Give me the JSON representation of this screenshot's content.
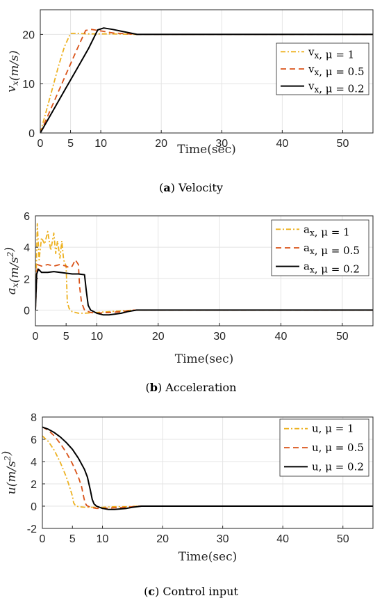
{
  "chart_data": [
    {
      "type": "line",
      "caption_letter": "a",
      "caption_text": "Velocity",
      "xlabel": "Time(sec)",
      "ylabel": "v_x(m/s)",
      "xlim": [
        0,
        55
      ],
      "ylim": [
        0,
        25
      ],
      "xticks": [
        0,
        5,
        10,
        20,
        30,
        40,
        50
      ],
      "yticks": [
        0,
        10,
        20
      ],
      "grid": true,
      "legend_position": "right",
      "series": [
        {
          "name": "v_x, μ = 1",
          "color": "#EDB120",
          "style": "dashdot",
          "x": [
            0,
            1,
            2,
            3,
            4,
            5,
            6,
            8,
            12,
            16,
            55
          ],
          "y": [
            0,
            4.5,
            9,
            13.5,
            17.5,
            20.2,
            20.2,
            20.1,
            20.1,
            20,
            20
          ]
        },
        {
          "name": "v_x, μ = 0.5",
          "color": "#D95319",
          "style": "dashed",
          "x": [
            0,
            2,
            4,
            6,
            7.5,
            8.5,
            10,
            12,
            16,
            55
          ],
          "y": [
            0,
            5.6,
            11.2,
            16.8,
            20.8,
            21,
            20.7,
            20.3,
            20,
            20
          ]
        },
        {
          "name": "v_x, μ = 0.2",
          "color": "#000000",
          "style": "solid",
          "x": [
            0,
            2,
            4,
            6,
            8,
            9.5,
            10.5,
            12,
            14,
            16,
            55
          ],
          "y": [
            0,
            4.3,
            8.6,
            12.9,
            17.2,
            20.9,
            21.3,
            21,
            20.5,
            20,
            20
          ]
        }
      ]
    },
    {
      "type": "line",
      "caption_letter": "b",
      "caption_text": "Acceleration",
      "xlabel": "Time(sec)",
      "ylabel": "a_x(m/s^2)",
      "xlim": [
        0,
        55
      ],
      "ylim": [
        -1,
        6
      ],
      "xticks": [
        0,
        10,
        20,
        30,
        40,
        50
      ],
      "extra_xticks": [
        5
      ],
      "yticks": [
        0,
        2,
        4,
        6
      ],
      "grid": true,
      "legend_position": "top-right",
      "series": [
        {
          "name": "a_x, μ = 1",
          "color": "#EDB120",
          "style": "dashdot",
          "x": [
            0,
            0.3,
            0.6,
            1,
            1.5,
            2,
            2.5,
            3,
            3.3,
            3.6,
            4,
            4.3,
            4.6,
            5,
            5.2,
            5.5,
            6,
            7,
            8,
            10,
            12,
            14,
            16,
            55
          ],
          "y": [
            0,
            5.5,
            3.2,
            4.6,
            4.2,
            5,
            3.8,
            4.9,
            3.6,
            4.4,
            3.3,
            4.4,
            3.2,
            2.8,
            0.5,
            0.1,
            -0.1,
            -0.2,
            -0.2,
            -0.15,
            -0.1,
            -0.05,
            0,
            0
          ]
        },
        {
          "name": "a_x, μ = 0.5",
          "color": "#D95319",
          "style": "dashed",
          "x": [
            0,
            0.3,
            1,
            2,
            3,
            4,
            5,
            5.5,
            6,
            6.5,
            7,
            7.2,
            7.5,
            8,
            9,
            10,
            12,
            14,
            16,
            55
          ],
          "y": [
            0,
            2.9,
            2.8,
            2.9,
            2.8,
            2.9,
            2.8,
            2.7,
            2.8,
            3.2,
            2.9,
            1.5,
            0.5,
            0,
            -0.15,
            -0.2,
            -0.15,
            -0.1,
            0,
            0
          ]
        },
        {
          "name": "a_x, μ = 0.2",
          "color": "#000000",
          "style": "solid",
          "x": [
            0,
            0.2,
            0.5,
            1,
            2,
            3,
            4,
            5,
            6,
            7,
            8,
            8.3,
            8.6,
            9,
            10,
            11,
            12,
            13,
            14,
            15,
            16.5,
            55
          ],
          "y": [
            0,
            2.3,
            2.6,
            2.4,
            2.4,
            2.45,
            2.4,
            2.35,
            2.3,
            2.3,
            2.25,
            1.2,
            0.3,
            0,
            -0.2,
            -0.3,
            -0.3,
            -0.25,
            -0.2,
            -0.1,
            0,
            0
          ]
        }
      ]
    },
    {
      "type": "line",
      "caption_letter": "c",
      "caption_text": "Control input",
      "xlabel": "Time(sec)",
      "ylabel": "u(m/s^2)",
      "xlim": [
        0,
        55
      ],
      "ylim": [
        -2,
        8
      ],
      "xticks": [
        0,
        10,
        20,
        30,
        40,
        50
      ],
      "extra_xticks": [
        5
      ],
      "yticks": [
        -2,
        0,
        2,
        4,
        6,
        8
      ],
      "grid": true,
      "legend_position": "top-right",
      "series": [
        {
          "name": "u, μ = 1",
          "color": "#EDB120",
          "style": "dashdot",
          "x": [
            0,
            1,
            2,
            3,
            4,
            4.6,
            5,
            5.2,
            5.5,
            6,
            7,
            8,
            10,
            12,
            14,
            16,
            55
          ],
          "y": [
            6.3,
            5.8,
            5,
            3.9,
            2.6,
            1.6,
            0.9,
            0.3,
            0.05,
            -0.05,
            -0.1,
            -0.1,
            -0.1,
            -0.05,
            -0.05,
            0,
            0
          ]
        },
        {
          "name": "u, μ = 0.5",
          "color": "#D95319",
          "style": "dashed",
          "x": [
            0,
            1,
            2,
            3,
            4,
            5,
            6,
            6.5,
            6.8,
            7.1,
            7.4,
            8,
            9,
            10,
            12,
            14,
            16,
            55
          ],
          "y": [
            7.1,
            6.8,
            6.3,
            5.6,
            4.8,
            3.8,
            2.6,
            1.8,
            1,
            0.3,
            0.05,
            -0.1,
            -0.2,
            -0.2,
            -0.15,
            -0.1,
            0,
            0
          ]
        },
        {
          "name": "u, μ = 0.2",
          "color": "#000000",
          "style": "solid",
          "x": [
            0,
            1,
            2,
            3,
            4,
            5,
            6,
            7,
            7.5,
            8,
            8.3,
            8.6,
            9,
            10,
            11,
            12,
            13,
            14,
            15,
            16.5,
            55
          ],
          "y": [
            7.1,
            6.9,
            6.6,
            6.2,
            5.7,
            5.1,
            4.3,
            3.3,
            2.6,
            1.4,
            0.6,
            0.2,
            0,
            -0.2,
            -0.3,
            -0.3,
            -0.25,
            -0.2,
            -0.1,
            0,
            0
          ]
        }
      ]
    }
  ]
}
